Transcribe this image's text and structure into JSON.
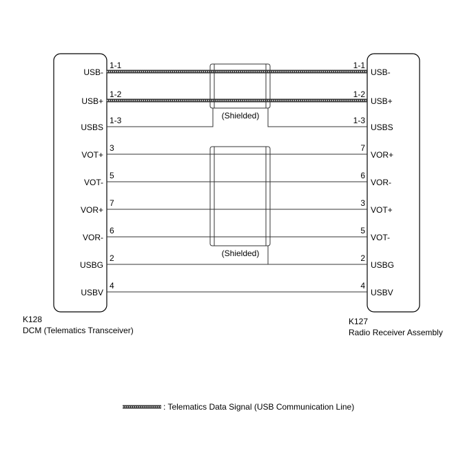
{
  "left_connector": {
    "code": "K128",
    "name": "DCM (Telematics Transceiver)"
  },
  "right_connector": {
    "code": "K127",
    "name": "Radio Receiver Assembly"
  },
  "wires": [
    {
      "left_pin": "1-1",
      "left_signal": "USB-",
      "right_pin": "1-1",
      "right_signal": "USB-",
      "type": "usb"
    },
    {
      "left_pin": "1-2",
      "left_signal": "USB+",
      "right_pin": "1-2",
      "right_signal": "USB+",
      "type": "usb"
    },
    {
      "left_pin": "1-3",
      "left_signal": "USBS",
      "right_pin": "1-3",
      "right_signal": "USBS",
      "type": "shield-ground"
    },
    {
      "left_pin": "3",
      "left_signal": "VOT+",
      "right_pin": "7",
      "right_signal": "VOR+",
      "type": "normal"
    },
    {
      "left_pin": "5",
      "left_signal": "VOT-",
      "right_pin": "6",
      "right_signal": "VOR-",
      "type": "normal"
    },
    {
      "left_pin": "7",
      "left_signal": "VOR+",
      "right_pin": "3",
      "right_signal": "VOT+",
      "type": "normal"
    },
    {
      "left_pin": "6",
      "left_signal": "VOR-",
      "right_pin": "5",
      "right_signal": "VOT-",
      "type": "normal"
    },
    {
      "left_pin": "2",
      "left_signal": "USBG",
      "right_pin": "2",
      "right_signal": "USBG",
      "type": "normal"
    },
    {
      "left_pin": "4",
      "left_signal": "USBV",
      "right_pin": "4",
      "right_signal": "USBV",
      "type": "normal"
    }
  ],
  "shields": [
    {
      "label": "(Shielded)"
    },
    {
      "label": "(Shielded)"
    }
  ],
  "legend": {
    "text": ": Telematics Data Signal (USB Communication Line)"
  }
}
